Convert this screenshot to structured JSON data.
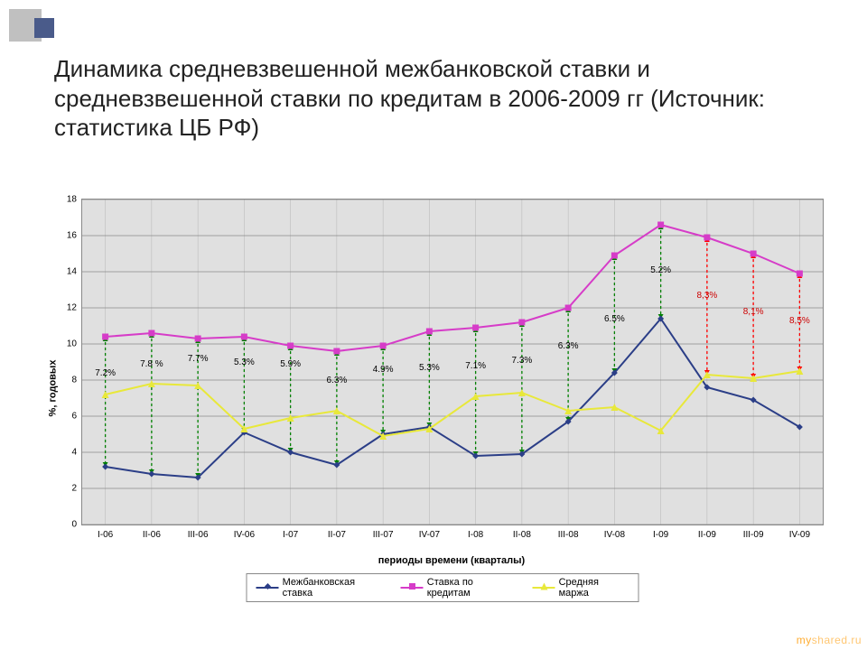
{
  "title": "Динамика средневзвешенной межбанковской ставки и средневзвешенной ставки по кредитам в 2006-2009 гг (Источник: статистика ЦБ РФ)",
  "chart": {
    "type": "line",
    "xlabel": "периоды времени (кварталы)",
    "ylabel": "%, годовых",
    "ylim": [
      0,
      18
    ],
    "ytick_step": 2,
    "background_color": "#e0e0e0",
    "grid_color": "#8b8b8b",
    "categories": [
      "I-06",
      "II-06",
      "III-06",
      "IV-06",
      "I-07",
      "II-07",
      "III-07",
      "IV-07",
      "I-08",
      "II-08",
      "III-08",
      "IV-08",
      "I-09",
      "II-09",
      "III-09",
      "IV-09"
    ],
    "series": [
      {
        "name": "Межбанковская ставка",
        "color": "#2b3e87",
        "marker": "diamond",
        "marker_size": 7,
        "line_width": 2,
        "values": [
          3.2,
          2.8,
          2.6,
          5.1,
          4.0,
          3.3,
          5.0,
          5.4,
          3.8,
          3.9,
          5.7,
          8.4,
          11.4,
          7.6,
          6.9,
          5.4
        ]
      },
      {
        "name": "Ставка по кредитам",
        "color": "#d63cc8",
        "marker": "square",
        "marker_size": 7,
        "line_width": 2,
        "values": [
          10.4,
          10.6,
          10.3,
          10.4,
          9.9,
          9.6,
          9.9,
          10.7,
          10.9,
          11.2,
          12.0,
          14.9,
          16.6,
          15.9,
          15.0,
          13.9
        ]
      },
      {
        "name": "Средняя маржа",
        "color": "#e8e83a",
        "marker": "triangle",
        "marker_size": 8,
        "line_width": 2,
        "values": [
          7.2,
          7.8,
          7.7,
          5.3,
          5.9,
          6.3,
          4.9,
          5.3,
          7.1,
          7.3,
          6.3,
          6.5,
          5.2,
          8.3,
          8.1,
          8.5
        ]
      }
    ],
    "diff_arrows": {
      "green": {
        "count": 13,
        "color": "#008000",
        "dash": "3,3"
      },
      "red": {
        "start": 13,
        "count": 3,
        "color": "#ff0000",
        "dash": "3,3"
      }
    },
    "data_labels": [
      {
        "i": 0,
        "text": "7.2%",
        "y": 8.1
      },
      {
        "i": 1,
        "text": "7.8 %",
        "y": 8.6
      },
      {
        "i": 2,
        "text": "7.7%",
        "y": 8.9
      },
      {
        "i": 3,
        "text": "5.3%",
        "y": 8.7
      },
      {
        "i": 4,
        "text": "5.9%",
        "y": 8.6
      },
      {
        "i": 5,
        "text": "6.3%",
        "y": 7.7
      },
      {
        "i": 6,
        "text": "4.9%",
        "y": 8.3
      },
      {
        "i": 7,
        "text": "5.3%",
        "y": 8.4
      },
      {
        "i": 8,
        "text": "7.1%",
        "y": 8.5
      },
      {
        "i": 9,
        "text": "7.3%",
        "y": 8.8
      },
      {
        "i": 10,
        "text": "6.3%",
        "y": 9.6
      },
      {
        "i": 11,
        "text": "6.5%",
        "y": 11.1
      },
      {
        "i": 12,
        "text": "5.2%",
        "y": 13.8
      },
      {
        "i": 13,
        "text": "8,3%",
        "y": 12.4,
        "color": "#cc0000"
      },
      {
        "i": 14,
        "text": "8,1%",
        "y": 11.5,
        "color": "#cc0000"
      },
      {
        "i": 15,
        "text": "8,5%",
        "y": 11.0,
        "color": "#cc0000"
      }
    ]
  },
  "watermark": {
    "left": "my",
    "right": "shared.ru"
  }
}
